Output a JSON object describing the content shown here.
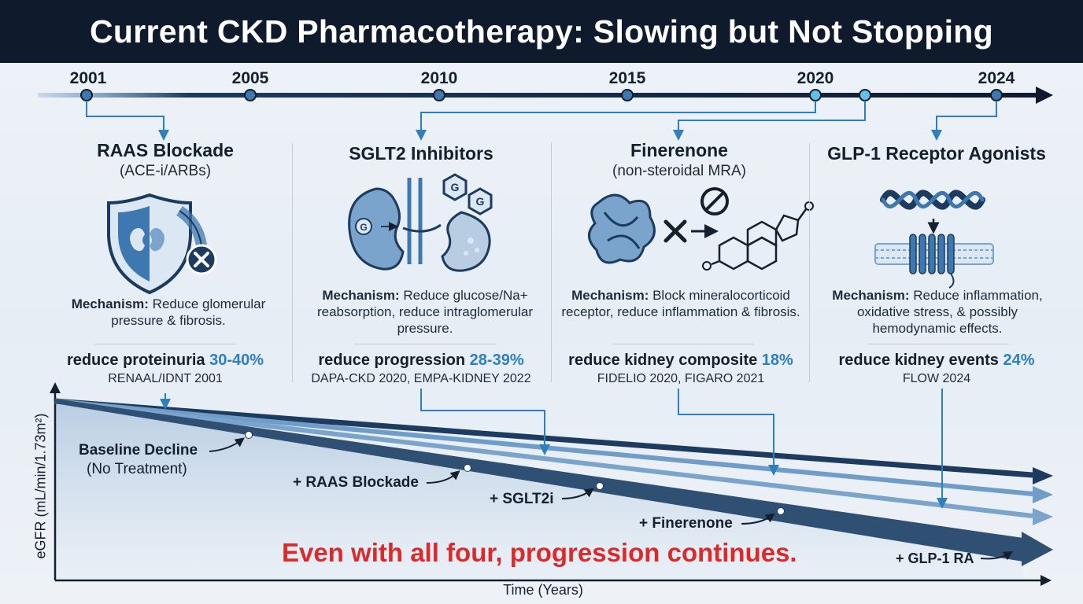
{
  "title": "Current CKD Pharmacotherapy: Slowing but Not Stopping",
  "timeline": {
    "years": [
      "2001",
      "2005",
      "2010",
      "2015",
      "2020",
      "2024"
    ]
  },
  "cards": [
    {
      "title": "RAAS Blockade",
      "subtitle": "(ACE-i/ARBs)",
      "mechanism_label": "Mechanism:",
      "mechanism_text": "Reduce glomerular pressure & fibrosis.",
      "effect_text": "reduce proteinuria",
      "effect_pct": "30-40%",
      "trials": "RENAAL/IDNT 2001",
      "icon": "shield-kidney-icon"
    },
    {
      "title": "SGLT2 Inhibitors",
      "subtitle": "",
      "mechanism_label": "Mechanism:",
      "mechanism_text": "Reduce glucose/Na+ reabsorption, reduce intraglomerular pressure.",
      "effect_text": "reduce progression",
      "effect_pct": "28-39%",
      "trials": "DAPA-CKD 2020, EMPA-KIDNEY 2022",
      "icon": "kidney-glucose-icon"
    },
    {
      "title": "Finerenone",
      "subtitle": "(non-steroidal MRA)",
      "mechanism_label": "Mechanism:",
      "mechanism_text": "Block mineralocorticoid receptor, reduce inflammation & fibrosis.",
      "effect_text": "reduce kidney composite",
      "effect_pct": "18%",
      "trials": "FIDELIO 2020, FIGARO 2021",
      "icon": "receptor-steroid-icon"
    },
    {
      "title": "GLP-1 Receptor Agonists",
      "subtitle": "",
      "mechanism_label": "Mechanism:",
      "mechanism_text": "Reduce inflammation, oxidative stress, & possibly hemodynamic effects.",
      "effect_text": "reduce kidney events",
      "effect_pct": "24%",
      "trials": "FLOW 2024",
      "icon": "helix-membrane-icon"
    }
  ],
  "trajectory": {
    "labels": {
      "baseline": "Baseline Decline",
      "baseline_sub": "(No Treatment)",
      "raas": "+ RAAS Blockade",
      "sglt2": "+ SGLT2i",
      "finerenone": "+ Finerenone",
      "glp1": "+ GLP-1 RA"
    },
    "message": "Even with all four, progression continues.",
    "y_axis": "eGFR (mL/min/1.73m²)",
    "x_axis": "Time (Years)"
  },
  "colors": {
    "header_bg": "#0f1a2c",
    "accent": "#2e7fc0",
    "warning": "#d92b2b",
    "line_dark": "#1d3b5e",
    "line_light": "#6f9cc8"
  }
}
